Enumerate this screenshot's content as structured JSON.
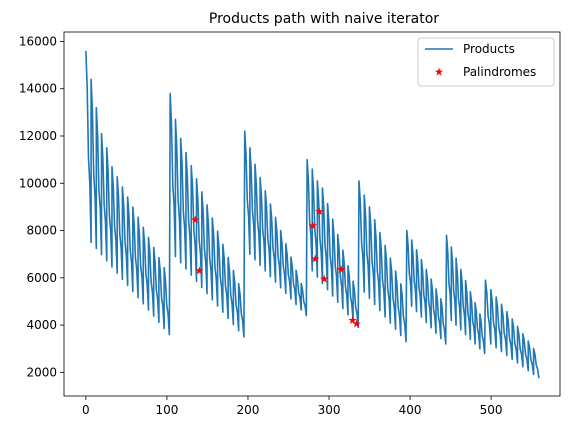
{
  "chart_data": {
    "type": "line",
    "title": "Products path with naive iterator",
    "xlabel": "",
    "ylabel": "",
    "xlim": [
      -27,
      585
    ],
    "ylim": [
      1000,
      16400
    ],
    "x_ticks": [
      0,
      100,
      200,
      300,
      400,
      500
    ],
    "y_ticks": [
      2000,
      4000,
      6000,
      8000,
      10000,
      12000,
      14000,
      16000
    ],
    "legend": {
      "placement": "top-right",
      "entries": [
        "Products",
        "Palindromes"
      ]
    },
    "colors": {
      "line": "#1f77b4",
      "marker": "#ff0000"
    },
    "sawtooth_segments": [
      {
        "x_start": 0,
        "x_end": 103,
        "big_peak": 15600,
        "first_teeth": [
          15600,
          14400,
          13200,
          12100,
          11500,
          10700
        ],
        "tooth_peak_end": 6000,
        "tooth_low_start": 7500,
        "tooth_low_end": 3600,
        "teeth": 16
      },
      {
        "x_start": 104,
        "x_end": 195,
        "big_peak": 13800,
        "first_teeth": [
          13800,
          12700,
          11900,
          11300
        ],
        "tooth_peak_end": 5200,
        "tooth_low_start": 6900,
        "tooth_low_end": 3500,
        "teeth": 14
      },
      {
        "x_start": 196,
        "x_end": 272,
        "big_peak": 12200,
        "first_teeth": [
          12200,
          11500,
          10800
        ],
        "tooth_peak_end": 5200,
        "tooth_low_start": 7000,
        "tooth_low_end": 4400,
        "teeth": 12
      },
      {
        "x_start": 273,
        "x_end": 336,
        "big_peak": 11000,
        "first_teeth": [
          11000,
          10600,
          10100,
          9800
        ],
        "tooth_peak_end": 5200,
        "tooth_low_start": 6300,
        "tooth_low_end": 3900,
        "teeth": 10
      },
      {
        "x_start": 337,
        "x_end": 395,
        "big_peak": 10100,
        "first_teeth": [
          10100,
          9500,
          9000
        ],
        "tooth_peak_end": 5200,
        "tooth_low_start": 5400,
        "tooth_low_end": 3300,
        "teeth": 9
      },
      {
        "x_start": 396,
        "x_end": 444,
        "big_peak": 8000,
        "first_teeth": [
          8000,
          7600
        ],
        "tooth_peak_end": 4700,
        "tooth_low_start": 4800,
        "tooth_low_end": 3200,
        "teeth": 8
      },
      {
        "x_start": 445,
        "x_end": 492,
        "big_peak": 7800,
        "first_teeth": [
          7800,
          7300
        ],
        "tooth_peak_end": 4000,
        "tooth_low_start": 4200,
        "tooth_low_end": 2800,
        "teeth": 8
      },
      {
        "x_start": 493,
        "x_end": 559,
        "big_peak": 5900,
        "first_teeth": [
          5900,
          5500
        ],
        "tooth_peak_end": 2700,
        "tooth_low_start": 3200,
        "tooth_low_end": 1750,
        "teeth": 10
      }
    ],
    "palindromes": [
      {
        "x": 135,
        "y": 8450
      },
      {
        "x": 140,
        "y": 6300
      },
      {
        "x": 280,
        "y": 8200
      },
      {
        "x": 283,
        "y": 6800
      },
      {
        "x": 288,
        "y": 8800
      },
      {
        "x": 294,
        "y": 5950
      },
      {
        "x": 315,
        "y": 6350
      },
      {
        "x": 329,
        "y": 4200
      },
      {
        "x": 334,
        "y": 4050
      }
    ]
  }
}
